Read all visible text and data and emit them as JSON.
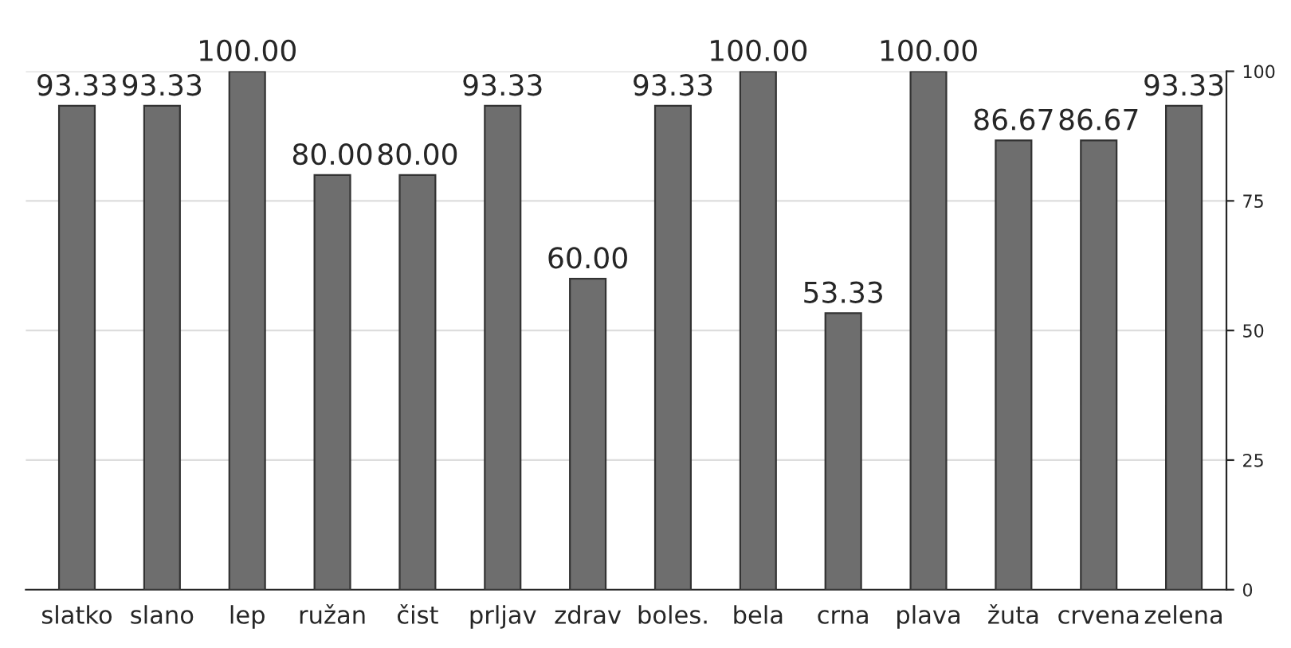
{
  "chart_data": {
    "type": "bar",
    "categories": [
      "slatko",
      "slano",
      "lep",
      "ružan",
      "čist",
      "prljav",
      "zdrav",
      "boles.",
      "bela",
      "crna",
      "plava",
      "žuta",
      "crvena",
      "zelena"
    ],
    "values": [
      93.33,
      93.33,
      100,
      80,
      80,
      93.33,
      60,
      93.33,
      100,
      53.33,
      100,
      86.67,
      86.67,
      93.33
    ],
    "value_labels": [
      "93.33",
      "93.33",
      "100.00",
      "80.00",
      "80.00",
      "93.33",
      "60.00",
      "93.33",
      "100.00",
      "53.33",
      "100.00",
      "86.67",
      "86.67",
      "93.33"
    ],
    "color": "#6e6e6e",
    "ylim": [
      0,
      100
    ],
    "yticks": [
      0,
      25,
      50,
      75,
      100
    ],
    "grid": "y"
  }
}
